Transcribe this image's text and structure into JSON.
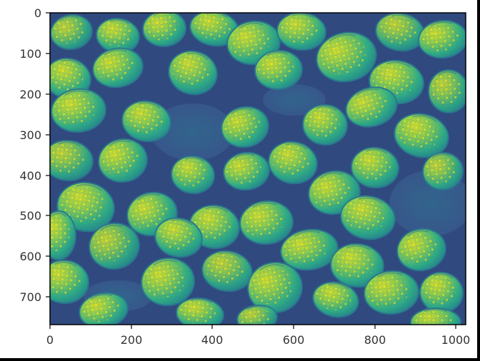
{
  "chart_data": {
    "type": "heatmap",
    "title": "",
    "xlabel": "",
    "ylabel": "",
    "xlim": [
      0,
      1024
    ],
    "ylim": [
      768,
      0
    ],
    "x_ticks": [
      0,
      200,
      400,
      600,
      800,
      1000
    ],
    "y_ticks": [
      0,
      100,
      200,
      300,
      400,
      500,
      600,
      700
    ],
    "x_tick_labels": [
      "0",
      "200",
      "400",
      "600",
      "800",
      "1000"
    ],
    "y_tick_labels": [
      "0",
      "100",
      "200",
      "300",
      "400",
      "500",
      "600",
      "700"
    ],
    "colormap": "viridis",
    "image_subject": "strawberries",
    "grid": false,
    "colors": {
      "dark": "#440154",
      "mid_dark": "#31688e",
      "mid": "#35b779",
      "bright": "#fde725"
    }
  }
}
